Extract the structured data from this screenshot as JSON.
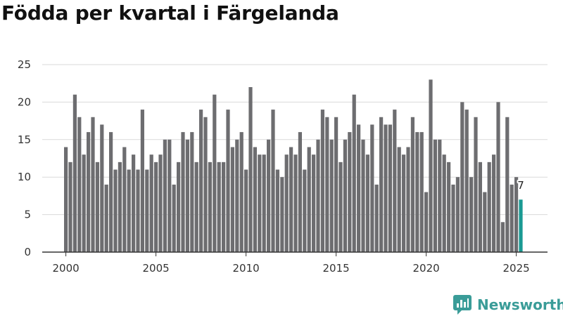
{
  "page_title": "Födda per kvartal i Färgelanda",
  "brand": {
    "name": "Newsworthy",
    "color": "#3a9c98"
  },
  "chart_data": {
    "type": "bar",
    "title": "Födda per kvartal i Färgelanda",
    "xlabel": "",
    "ylabel": "",
    "ylim": [
      0,
      25
    ],
    "yticks": [
      0,
      5,
      10,
      15,
      20,
      25
    ],
    "xticks": [
      "2000",
      "2005",
      "2010",
      "2015",
      "2020",
      "2025"
    ],
    "x_start": 2000,
    "grid": true,
    "colors": {
      "bar": "#6d6d70",
      "highlight": "#1a9a93",
      "grid": "#d9d9d9",
      "axis": "#333333"
    },
    "values": [
      14,
      12,
      21,
      18,
      13,
      16,
      18,
      12,
      17,
      9,
      16,
      11,
      12,
      14,
      11,
      13,
      11,
      19,
      11,
      13,
      12,
      13,
      15,
      15,
      9,
      12,
      16,
      15,
      16,
      12,
      19,
      18,
      12,
      21,
      12,
      12,
      19,
      14,
      15,
      16,
      11,
      22,
      14,
      13,
      13,
      15,
      19,
      11,
      10,
      13,
      14,
      13,
      16,
      11,
      14,
      13,
      15,
      19,
      18,
      15,
      18,
      12,
      15,
      16,
      21,
      17,
      15,
      13,
      17,
      9,
      18,
      17,
      17,
      19,
      14,
      13,
      14,
      18,
      16,
      16,
      8,
      23,
      15,
      15,
      13,
      12,
      9,
      10,
      20,
      19,
      10,
      18,
      12,
      8,
      12,
      13,
      20,
      4,
      18,
      9,
      10,
      7
    ],
    "highlight_index": 101,
    "annotation": {
      "index": 101,
      "label": "7"
    }
  }
}
